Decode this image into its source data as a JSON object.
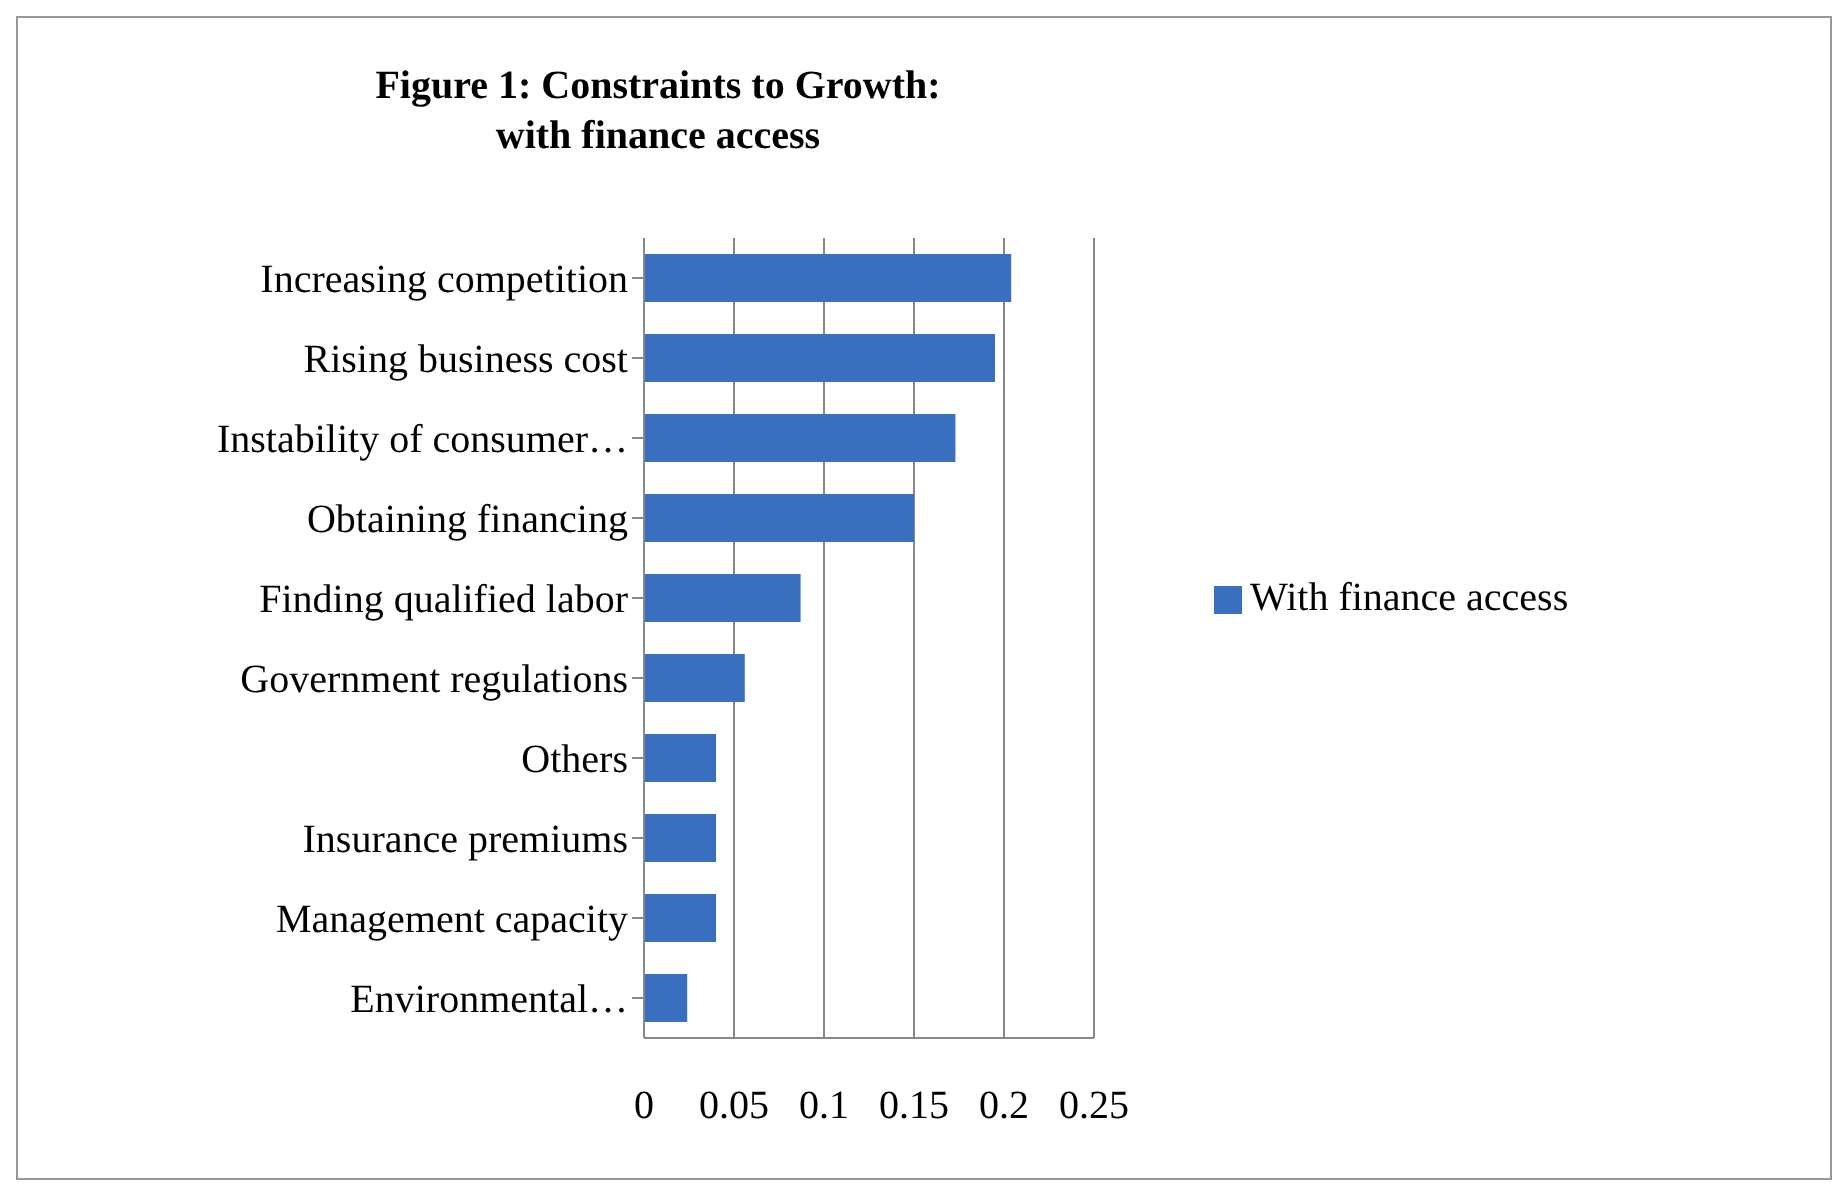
{
  "chart_data": {
    "type": "bar",
    "orientation": "horizontal",
    "title": "Figure 1: Constraints to Growth:\nwith finance access",
    "categories": [
      "Increasing competition",
      "Rising business cost",
      "Instability of consumer…",
      "Obtaining financing",
      "Finding qualified labor",
      "Government regulations",
      "Others",
      "Insurance premiums",
      "Management capacity",
      "Environmental…"
    ],
    "series": [
      {
        "name": "With finance access",
        "color": "#3a6fbf",
        "values": [
          0.204,
          0.195,
          0.173,
          0.15,
          0.087,
          0.056,
          0.04,
          0.04,
          0.04,
          0.024
        ]
      }
    ],
    "xlim": [
      0,
      0.25
    ],
    "xticks": [
      0,
      0.05,
      0.1,
      0.15,
      0.2,
      0.25
    ],
    "grid": "x",
    "legend": "right"
  }
}
